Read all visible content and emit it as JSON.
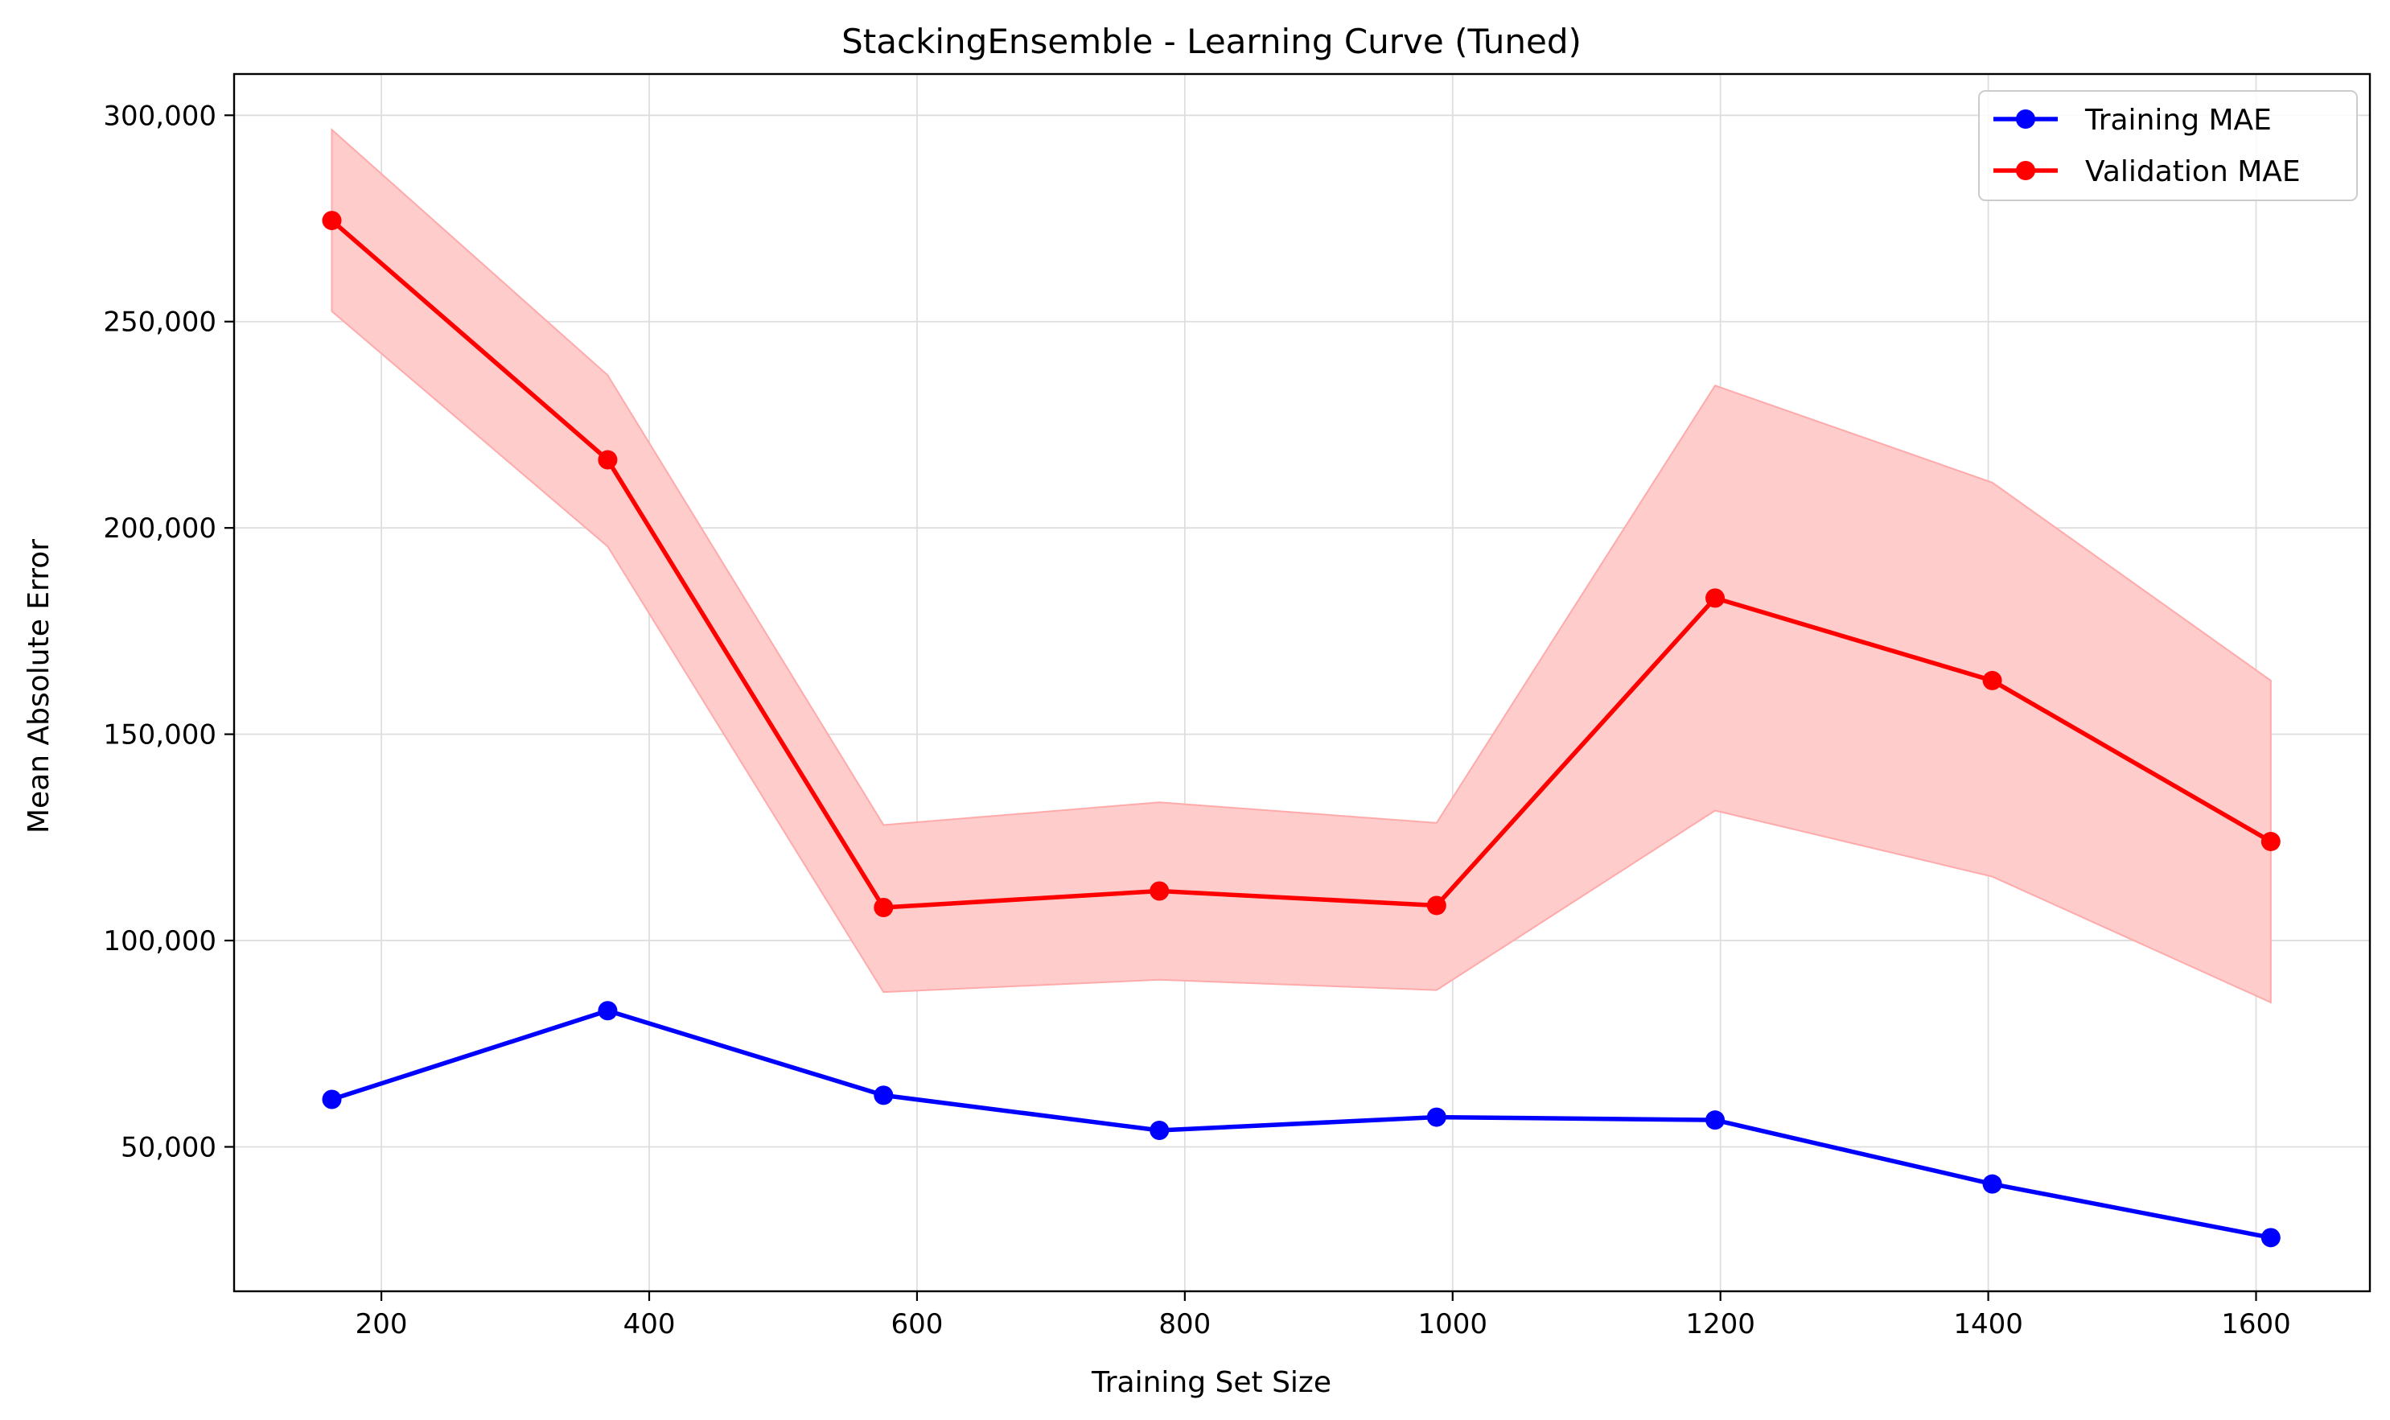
{
  "chart_data": {
    "type": "line",
    "title": "StackingEnsemble - Learning Curve (Tuned)",
    "xlabel": "Training Set Size",
    "ylabel": "Mean Absolute Error",
    "xlim": [
      90,
      1685
    ],
    "ylim": [
      15000,
      310000
    ],
    "xticks": [
      200,
      400,
      600,
      800,
      1000,
      1200,
      1400,
      1600
    ],
    "yticks": [
      50000,
      100000,
      150000,
      200000,
      250000,
      300000
    ],
    "xtick_labels": [
      "200",
      "400",
      "600",
      "800",
      "1000",
      "1200",
      "1400",
      "1600"
    ],
    "ytick_labels": [
      "50,000",
      "100,000",
      "150,000",
      "200,000",
      "250,000",
      "300,000"
    ],
    "grid": true,
    "legend_position": "upper right",
    "x": [
      163,
      369,
      575,
      781,
      988,
      1196,
      1403,
      1611
    ],
    "series": [
      {
        "name": "Training MAE",
        "color": "#0000ff",
        "values": [
          61500,
          83000,
          62500,
          54000,
          57200,
          56500,
          41000,
          28000
        ]
      },
      {
        "name": "Validation MAE",
        "color": "#ff0000",
        "values": [
          274500,
          216500,
          108000,
          112000,
          108500,
          183000,
          163000,
          124000
        ],
        "band_lower": [
          252500,
          195500,
          87500,
          90500,
          88000,
          131500,
          115500,
          85000
        ],
        "band_upper": [
          296500,
          237000,
          128000,
          133500,
          128500,
          234500,
          211000,
          163000
        ],
        "band_color": "#ffcccc"
      }
    ]
  }
}
